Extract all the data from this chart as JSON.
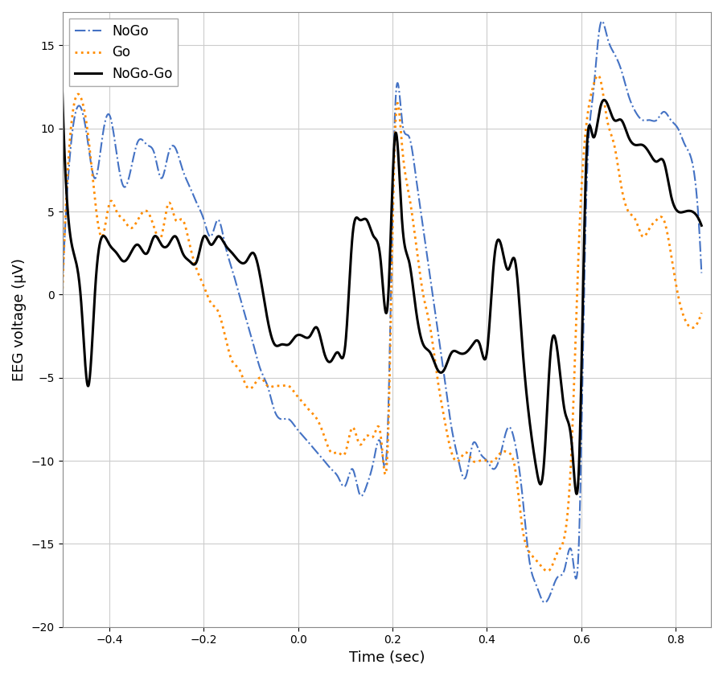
{
  "title": "",
  "xlabel": "Time (sec)",
  "ylabel": "EEG voltage (μV)",
  "xlim": [
    -0.5,
    0.875
  ],
  "ylim": [
    -20,
    17
  ],
  "background_color": "#ffffff",
  "grid_color": "#cccccc",
  "nogo_color": "#4472c4",
  "go_color": "#ff8c00",
  "diff_color": "#000000",
  "legend_labels": [
    "NoGo",
    "Go",
    "NoGo-Go"
  ],
  "nogo_x": [
    -0.5,
    -0.48,
    -0.46,
    -0.445,
    -0.43,
    -0.415,
    -0.4,
    -0.385,
    -0.37,
    -0.355,
    -0.34,
    -0.32,
    -0.305,
    -0.29,
    -0.275,
    -0.26,
    -0.245,
    -0.23,
    -0.215,
    -0.2,
    -0.185,
    -0.17,
    -0.155,
    -0.14,
    -0.125,
    -0.11,
    -0.095,
    -0.08,
    -0.065,
    -0.05,
    -0.035,
    -0.02,
    -0.005,
    0.01,
    0.025,
    0.04,
    0.055,
    0.07,
    0.085,
    0.1,
    0.115,
    0.13,
    0.145,
    0.16,
    0.175,
    0.19,
    0.205,
    0.22,
    0.235,
    0.25,
    0.265,
    0.28,
    0.295,
    0.31,
    0.325,
    0.34,
    0.355,
    0.37,
    0.385,
    0.4,
    0.415,
    0.43,
    0.445,
    0.46,
    0.475,
    0.49,
    0.505,
    0.52,
    0.535,
    0.55,
    0.565,
    0.58,
    0.595,
    0.61,
    0.625,
    0.64,
    0.655,
    0.67,
    0.685,
    0.7,
    0.715,
    0.73,
    0.745,
    0.76,
    0.775,
    0.79,
    0.805,
    0.82,
    0.835,
    0.85
  ],
  "nogo_y": [
    0.5,
    9.5,
    11.2,
    9.0,
    7.0,
    9.5,
    10.8,
    8.5,
    6.5,
    7.5,
    9.2,
    9.0,
    8.5,
    7.0,
    8.5,
    8.8,
    7.5,
    6.5,
    5.5,
    4.5,
    3.5,
    4.5,
    3.0,
    1.5,
    0.0,
    -1.5,
    -3.0,
    -4.5,
    -5.5,
    -7.0,
    -7.5,
    -7.5,
    -8.0,
    -8.5,
    -9.0,
    -9.5,
    -10.0,
    -10.5,
    -11.0,
    -11.5,
    -10.5,
    -12.0,
    -11.5,
    -10.0,
    -9.0,
    -8.0,
    10.8,
    10.5,
    9.5,
    7.0,
    4.0,
    1.0,
    -2.0,
    -5.0,
    -8.0,
    -10.0,
    -11.0,
    -9.0,
    -9.5,
    -10.0,
    -10.5,
    -9.5,
    -8.0,
    -9.0,
    -12.0,
    -16.0,
    -17.5,
    -18.5,
    -18.0,
    -17.0,
    -16.5,
    -15.5,
    -15.0,
    5.0,
    12.0,
    16.2,
    15.5,
    14.5,
    13.5,
    12.0,
    11.0,
    10.5,
    10.5,
    10.5,
    11.0,
    10.5,
    10.0,
    9.0,
    8.0,
    4.0
  ],
  "go_x": [
    -0.5,
    -0.48,
    -0.46,
    -0.445,
    -0.43,
    -0.415,
    -0.4,
    -0.385,
    -0.37,
    -0.355,
    -0.34,
    -0.32,
    -0.305,
    -0.29,
    -0.275,
    -0.26,
    -0.245,
    -0.23,
    -0.215,
    -0.2,
    -0.185,
    -0.17,
    -0.155,
    -0.14,
    -0.125,
    -0.11,
    -0.095,
    -0.08,
    -0.065,
    -0.05,
    -0.035,
    -0.02,
    -0.005,
    0.01,
    0.025,
    0.04,
    0.055,
    0.07,
    0.085,
    0.1,
    0.115,
    0.13,
    0.145,
    0.16,
    0.175,
    0.19,
    0.205,
    0.22,
    0.235,
    0.25,
    0.265,
    0.28,
    0.295,
    0.31,
    0.325,
    0.34,
    0.355,
    0.37,
    0.385,
    0.4,
    0.415,
    0.43,
    0.445,
    0.46,
    0.475,
    0.49,
    0.505,
    0.52,
    0.535,
    0.55,
    0.565,
    0.58,
    0.595,
    0.61,
    0.625,
    0.64,
    0.655,
    0.67,
    0.685,
    0.7,
    0.715,
    0.73,
    0.745,
    0.76,
    0.775,
    0.79,
    0.805,
    0.82,
    0.835,
    0.85
  ],
  "go_y": [
    0.0,
    10.5,
    11.8,
    9.5,
    5.5,
    3.5,
    5.5,
    5.0,
    4.5,
    4.0,
    4.5,
    5.0,
    4.0,
    3.5,
    5.5,
    4.5,
    4.5,
    3.0,
    1.5,
    0.5,
    -0.5,
    -1.0,
    -2.5,
    -4.0,
    -4.5,
    -5.5,
    -5.5,
    -5.0,
    -5.5,
    -5.5,
    -5.5,
    -5.5,
    -6.0,
    -6.5,
    -7.0,
    -7.5,
    -8.5,
    -9.5,
    -9.5,
    -9.5,
    -8.0,
    -9.0,
    -8.5,
    -8.5,
    -8.5,
    -9.0,
    9.5,
    9.0,
    6.0,
    3.0,
    0.0,
    -2.0,
    -5.0,
    -7.5,
    -9.5,
    -10.0,
    -9.5,
    -10.0,
    -10.0,
    -10.0,
    -10.0,
    -9.5,
    -9.5,
    -10.5,
    -14.0,
    -15.5,
    -16.0,
    -16.5,
    -16.5,
    -15.5,
    -14.5,
    -9.0,
    3.0,
    10.0,
    12.5,
    13.0,
    10.5,
    9.0,
    6.5,
    5.0,
    4.5,
    3.5,
    4.0,
    4.5,
    4.5,
    2.5,
    0.0,
    -1.5,
    -2.0,
    -1.5
  ],
  "diff_x": [
    -0.5,
    -0.48,
    -0.46,
    -0.445,
    -0.43,
    -0.415,
    -0.4,
    -0.385,
    -0.37,
    -0.355,
    -0.34,
    -0.32,
    -0.305,
    -0.29,
    -0.275,
    -0.26,
    -0.245,
    -0.23,
    -0.215,
    -0.2,
    -0.185,
    -0.17,
    -0.155,
    -0.14,
    -0.125,
    -0.11,
    -0.095,
    -0.08,
    -0.065,
    -0.05,
    -0.035,
    -0.02,
    -0.005,
    0.01,
    0.025,
    0.04,
    0.055,
    0.07,
    0.085,
    0.1,
    0.115,
    0.13,
    0.145,
    0.16,
    0.175,
    0.19,
    0.205,
    0.22,
    0.235,
    0.25,
    0.265,
    0.28,
    0.295,
    0.31,
    0.325,
    0.34,
    0.355,
    0.37,
    0.385,
    0.4,
    0.415,
    0.43,
    0.445,
    0.46,
    0.475,
    0.49,
    0.505,
    0.52,
    0.535,
    0.55,
    0.565,
    0.58,
    0.595,
    0.61,
    0.625,
    0.64,
    0.655,
    0.67,
    0.685,
    0.7,
    0.715,
    0.73,
    0.745,
    0.76,
    0.775,
    0.79,
    0.805,
    0.82,
    0.835,
    0.85
  ],
  "diff_y": [
    12.2,
    3.0,
    -0.5,
    -5.5,
    0.5,
    3.5,
    3.0,
    2.5,
    2.0,
    2.5,
    3.0,
    2.5,
    3.5,
    3.0,
    3.0,
    3.5,
    2.5,
    2.0,
    2.0,
    3.5,
    3.0,
    3.5,
    3.0,
    2.5,
    2.0,
    2.0,
    2.5,
    1.0,
    -1.5,
    -3.0,
    -3.0,
    -3.0,
    -2.5,
    -2.5,
    -2.5,
    -2.0,
    -3.5,
    -4.0,
    -3.5,
    -3.0,
    3.5,
    4.5,
    4.5,
    3.5,
    2.0,
    -0.5,
    9.5,
    4.5,
    2.0,
    -1.0,
    -3.0,
    -3.5,
    -4.5,
    -4.5,
    -3.5,
    -3.5,
    -3.5,
    -3.0,
    -3.0,
    -3.5,
    2.0,
    3.0,
    1.5,
    2.0,
    -3.0,
    -7.5,
    -10.5,
    -10.5,
    -3.5,
    -3.5,
    -7.0,
    -9.0,
    -10.5,
    7.5,
    9.5,
    11.2,
    11.5,
    10.5,
    10.5,
    9.5,
    9.0,
    9.0,
    8.5,
    8.0,
    8.0,
    6.0,
    5.0,
    5.0,
    5.0,
    4.5
  ]
}
